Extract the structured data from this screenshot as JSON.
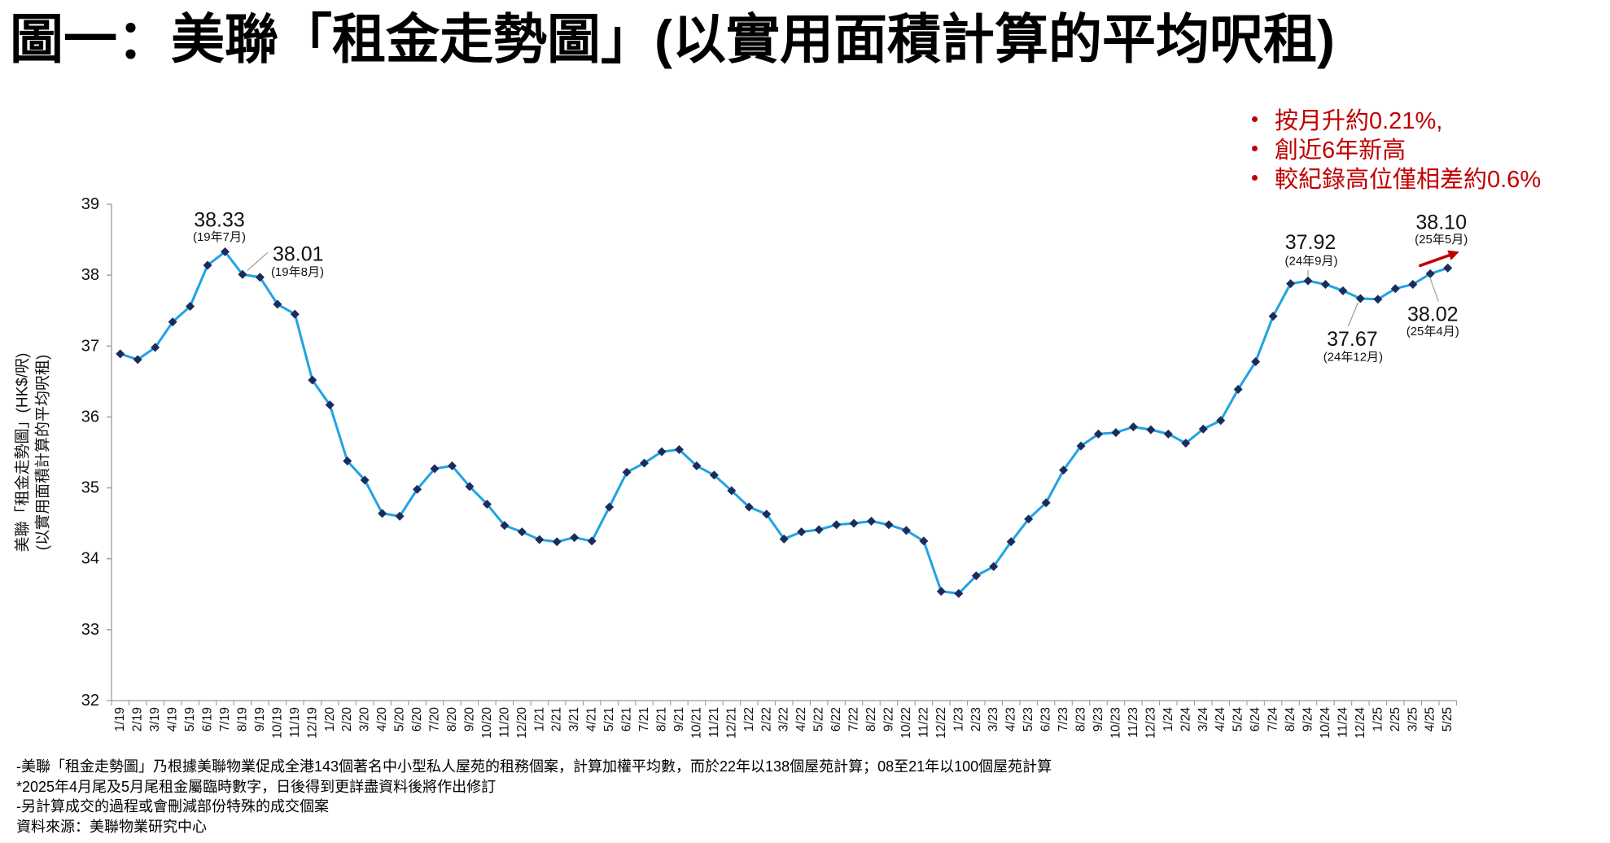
{
  "chart_data": {
    "type": "line",
    "title": "圖一：美聯「租金走勢圖」(以實用面積計算的平均呎租)",
    "ylabel": [
      "美聯「租金走勢圖」(HK$/呎)",
      "(以實用面積計算的平均呎租)"
    ],
    "ylim": [
      32,
      39
    ],
    "yticks": [
      32,
      33,
      34,
      35,
      36,
      37,
      38,
      39
    ],
    "grid": false,
    "categories": [
      "1/19",
      "2/19",
      "3/19",
      "4/19",
      "5/19",
      "6/19",
      "7/19",
      "8/19",
      "9/19",
      "10/19",
      "11/19",
      "12/19",
      "1/20",
      "2/20",
      "3/20",
      "4/20",
      "5/20",
      "6/20",
      "7/20",
      "8/20",
      "9/20",
      "10/20",
      "11/20",
      "12/20",
      "1/21",
      "2/21",
      "3/21",
      "4/21",
      "5/21",
      "6/21",
      "7/21",
      "8/21",
      "9/21",
      "10/21",
      "11/21",
      "12/21",
      "1/22",
      "2/22",
      "3/22",
      "4/22",
      "5/22",
      "6/22",
      "7/22",
      "8/22",
      "9/22",
      "10/22",
      "11/22",
      "12/22",
      "1/23",
      "2/23",
      "3/23",
      "4/23",
      "5/23",
      "6/23",
      "7/23",
      "8/23",
      "9/23",
      "10/23",
      "11/23",
      "12/23",
      "1/24",
      "2/24",
      "3/24",
      "4/24",
      "5/24",
      "6/24",
      "7/24",
      "8/24",
      "9/24",
      "10/24",
      "11/24",
      "12/24",
      "1/25",
      "2/25",
      "3/25",
      "4/25",
      "5/25"
    ],
    "series": [
      {
        "values": [
          36.89,
          36.81,
          36.98,
          37.34,
          37.56,
          38.14,
          38.33,
          38.01,
          37.97,
          37.59,
          37.45,
          36.52,
          36.17,
          35.38,
          35.11,
          34.64,
          34.6,
          34.98,
          35.27,
          35.31,
          35.02,
          34.77,
          34.47,
          34.38,
          34.27,
          34.24,
          34.3,
          34.25,
          34.73,
          35.22,
          35.35,
          35.51,
          35.54,
          35.31,
          35.18,
          34.96,
          34.73,
          34.63,
          34.28,
          34.38,
          34.41,
          34.48,
          34.5,
          34.53,
          34.48,
          34.4,
          34.25,
          33.54,
          33.51,
          33.76,
          33.89,
          34.24,
          34.56,
          34.79,
          35.25,
          35.59,
          35.76,
          35.78,
          35.86,
          35.82,
          35.76,
          35.63,
          35.83,
          35.95,
          36.39,
          36.78,
          37.42,
          37.88,
          37.92,
          37.87,
          37.78,
          37.67,
          37.66,
          37.81,
          37.87,
          38.02,
          38.1
        ]
      }
    ],
    "annotations": [
      {
        "x": "7/19",
        "label": "38.33",
        "note": "(19年7月)"
      },
      {
        "x": "8/19",
        "label": "38.01",
        "note": "(19年8月)"
      },
      {
        "x": "9/24",
        "label": "37.92",
        "note": "(24年9月)"
      },
      {
        "x": "12/24",
        "label": "37.67",
        "note": "(24年12月)"
      },
      {
        "x": "4/25",
        "label": "38.02",
        "note": "(25年4月)"
      },
      {
        "x": "5/25",
        "label": "38.10",
        "note": "(25年5月)"
      }
    ],
    "colors": {
      "line": "#1fa3e3",
      "marker": "#1b2c5c",
      "axis": "#9a9a9a",
      "leader": "#9a9a9a",
      "arrow": "#c00000"
    }
  },
  "highlights": [
    "按月升約0.21%,",
    "創近6年新高",
    "較紀錄高位僅相差約0.6%"
  ],
  "highlight_color": "#c00000",
  "footnotes": [
    "-美聯「租金走勢圖」乃根據美聯物業促成全港143個著名中小型私人屋苑的租務個案，計算加權平均數，而於22年以138個屋苑計算；08至21年以100個屋苑計算",
    "*2025年4月尾及5月尾租金屬臨時數字，日後得到更詳盡資料後將作出修訂",
    "-另計算成交的過程或會刪減部份特殊的成交個案",
    "資料來源：美聯物業研究中心"
  ]
}
